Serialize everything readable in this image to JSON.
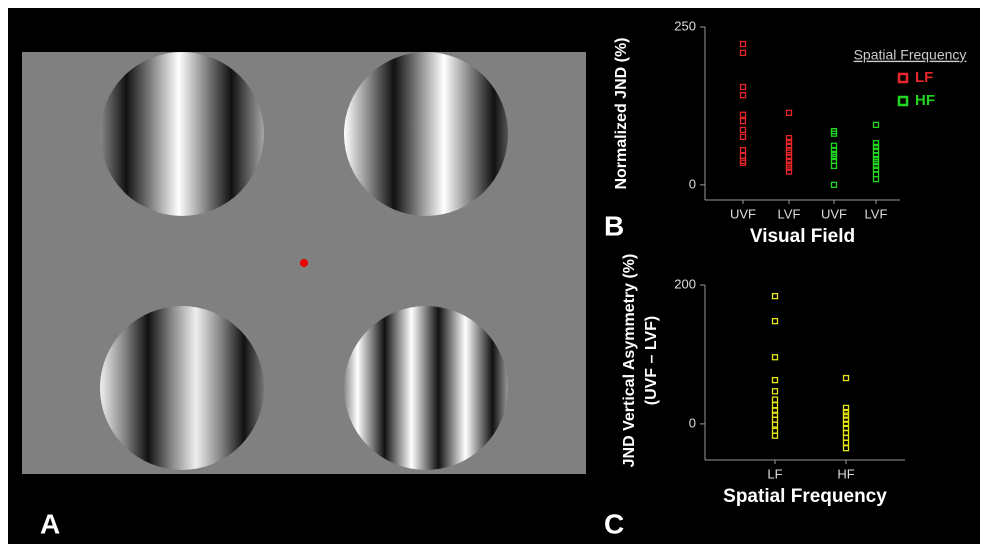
{
  "stimulus": {
    "panel_label": "A"
  },
  "chart_data": [
    {
      "type": "strip",
      "panel_label": "B",
      "ylabel": "Normalized JND (%)",
      "xlabel": "Visual Field",
      "legend_title": "Spatial Frequency",
      "legend": "top-right",
      "ylim": [
        -24,
        250
      ],
      "yticks": [
        0,
        250
      ],
      "series": [
        {
          "name": "LF",
          "color": "#e8262a",
          "categories": [
            "UVF",
            "LVF"
          ],
          "values": [
            [
              223,
              209,
              155,
              142,
              111,
              101,
              87,
              76,
              55,
              46,
              38,
              35
            ],
            [
              114,
              74,
              68,
              62,
              55,
              51,
              44,
              38,
              32,
              27,
              21
            ]
          ]
        },
        {
          "name": "HF",
          "color": "#22d622",
          "categories": [
            "UVF",
            "LVF"
          ],
          "values": [
            [
              85,
              81,
              62,
              55,
              49,
              44,
              38,
              30,
              0
            ],
            [
              95,
              66,
              60,
              54,
              47,
              41,
              36,
              30,
              24,
              17,
              9
            ]
          ]
        }
      ]
    },
    {
      "type": "strip",
      "panel_label": "C",
      "ylabel_lines": [
        "JND Vertical Asymmetry (%)",
        "(UVF – LVF)"
      ],
      "xlabel": "Spatial Frequency",
      "ylim": [
        -52,
        200
      ],
      "yticks": [
        0,
        200
      ],
      "series": [
        {
          "color": "#e6e619",
          "categories": [
            "LF",
            "HF"
          ],
          "values": [
            [
              184,
              148,
              96,
              63,
              47,
              35,
              27,
              19,
              13,
              6,
              -1,
              -10,
              -17
            ],
            [
              66,
              23,
              17,
              12,
              6,
              0,
              -6,
              -13,
              -20,
              -27,
              -35
            ]
          ]
        }
      ]
    }
  ]
}
